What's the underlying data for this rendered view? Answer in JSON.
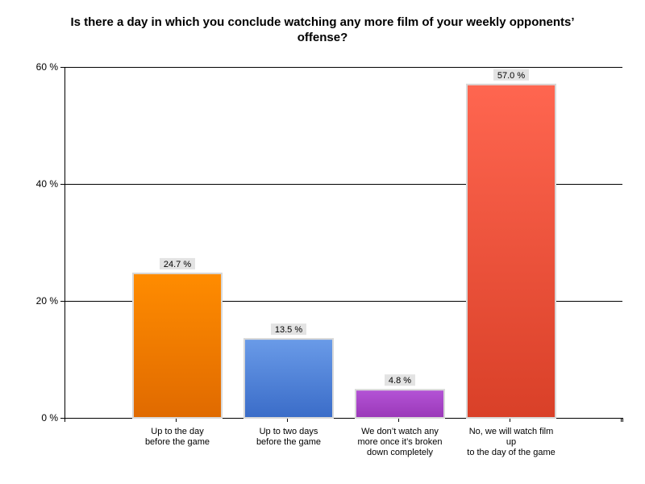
{
  "chart_data": {
    "type": "bar",
    "title_lines": [
      "Is there a day in which you conclude watching any more film of your weekly opponents’",
      "offense?"
    ],
    "xlabel": "",
    "ylabel": "",
    "ylim": [
      0,
      60
    ],
    "yticks": [
      0,
      20,
      40,
      60
    ],
    "ytick_labels": [
      "0 %",
      "20 %",
      "40 %",
      "60 %"
    ],
    "grid": true,
    "categories": [
      [
        "Up to the day",
        "before the game"
      ],
      [
        "Up to two days",
        "before the game"
      ],
      [
        "We don’t watch any",
        "more once it’s broken",
        "down completely"
      ],
      [
        "No, we will watch film",
        "up",
        "to the day of the game"
      ]
    ],
    "values": [
      24.7,
      13.5,
      4.8,
      57.0
    ],
    "value_labels": [
      "24.7 %",
      "13.5 %",
      "4.8 %",
      "57.0 %"
    ],
    "colors": [
      {
        "top": "#ff8c00",
        "bottom": "#e06a00"
      },
      {
        "top": "#6a9be8",
        "bottom": "#3a6cc8"
      },
      {
        "top": "#b454d6",
        "bottom": "#9a38b8"
      },
      {
        "top": "#ff6650",
        "bottom": "#d94028"
      }
    ]
  }
}
